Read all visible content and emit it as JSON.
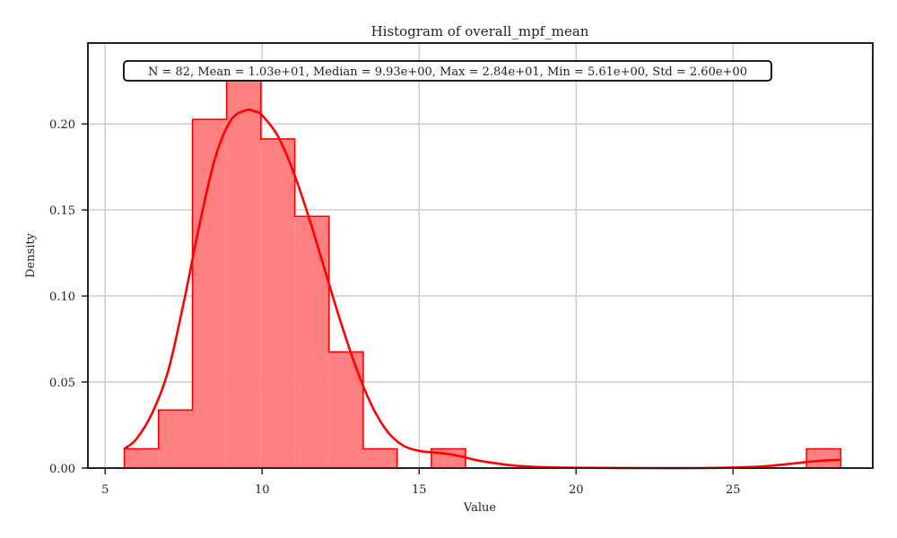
{
  "chart_data": {
    "type": "histogram",
    "title": "Histogram of overall_mpf_mean",
    "xlabel": "Value",
    "ylabel": "Density",
    "xlim": [
      4.45,
      29.45
    ],
    "ylim": [
      0,
      0.247
    ],
    "x_ticks": [
      5,
      10,
      15,
      20,
      25
    ],
    "y_ticks": [
      0.0,
      0.05,
      0.1,
      0.15,
      0.2
    ],
    "x_tick_labels": [
      "5",
      "10",
      "15",
      "20",
      "25"
    ],
    "y_tick_labels": [
      "0.00",
      "0.05",
      "0.10",
      "0.15",
      "0.20"
    ],
    "grid": true,
    "stats_text": "N = 82, Mean = 1.03e+01, Median = 9.93e+00, Max = 2.84e+01, Min = 5.61e+00, Std = 2.60e+00",
    "color": "#ff0000",
    "fill_color": "#ff8080",
    "bins": [
      {
        "x0": 5.61,
        "x1": 6.7,
        "density": 0.0112
      },
      {
        "x0": 6.7,
        "x1": 7.78,
        "density": 0.0337
      },
      {
        "x0": 7.78,
        "x1": 8.87,
        "density": 0.2026
      },
      {
        "x0": 8.87,
        "x1": 9.96,
        "density": 0.2363
      },
      {
        "x0": 9.96,
        "x1": 11.04,
        "density": 0.1913
      },
      {
        "x0": 11.04,
        "x1": 12.13,
        "density": 0.1463
      },
      {
        "x0": 12.13,
        "x1": 13.22,
        "density": 0.0675
      },
      {
        "x0": 13.22,
        "x1": 14.3,
        "density": 0.0112
      },
      {
        "x0": 14.3,
        "x1": 15.39,
        "density": 0.0
      },
      {
        "x0": 15.39,
        "x1": 16.48,
        "density": 0.0112
      },
      {
        "x0": 16.48,
        "x1": 27.34,
        "density": 0.0
      },
      {
        "x0": 27.34,
        "x1": 28.43,
        "density": 0.0112
      }
    ],
    "kde": {
      "x": [
        5.6,
        6.0,
        6.5,
        7.0,
        7.5,
        8.0,
        8.5,
        9.0,
        9.5,
        9.8,
        10.0,
        10.5,
        11.0,
        11.5,
        12.0,
        12.5,
        13.0,
        13.5,
        14.0,
        14.5,
        15.0,
        15.5,
        16.0,
        16.5,
        17.0,
        18.0,
        19.0,
        20.0,
        22.0,
        24.0,
        25.0,
        26.0,
        27.0,
        27.5,
        28.0,
        28.4
      ],
      "y": [
        0.011,
        0.017,
        0.032,
        0.056,
        0.096,
        0.141,
        0.18,
        0.202,
        0.208,
        0.207,
        0.205,
        0.193,
        0.172,
        0.145,
        0.115,
        0.085,
        0.058,
        0.036,
        0.021,
        0.013,
        0.01,
        0.009,
        0.008,
        0.006,
        0.004,
        0.0015,
        0.0005,
        0.0002,
        0.0,
        0.0,
        0.0003,
        0.001,
        0.0028,
        0.0038,
        0.0045,
        0.0047
      ]
    }
  }
}
